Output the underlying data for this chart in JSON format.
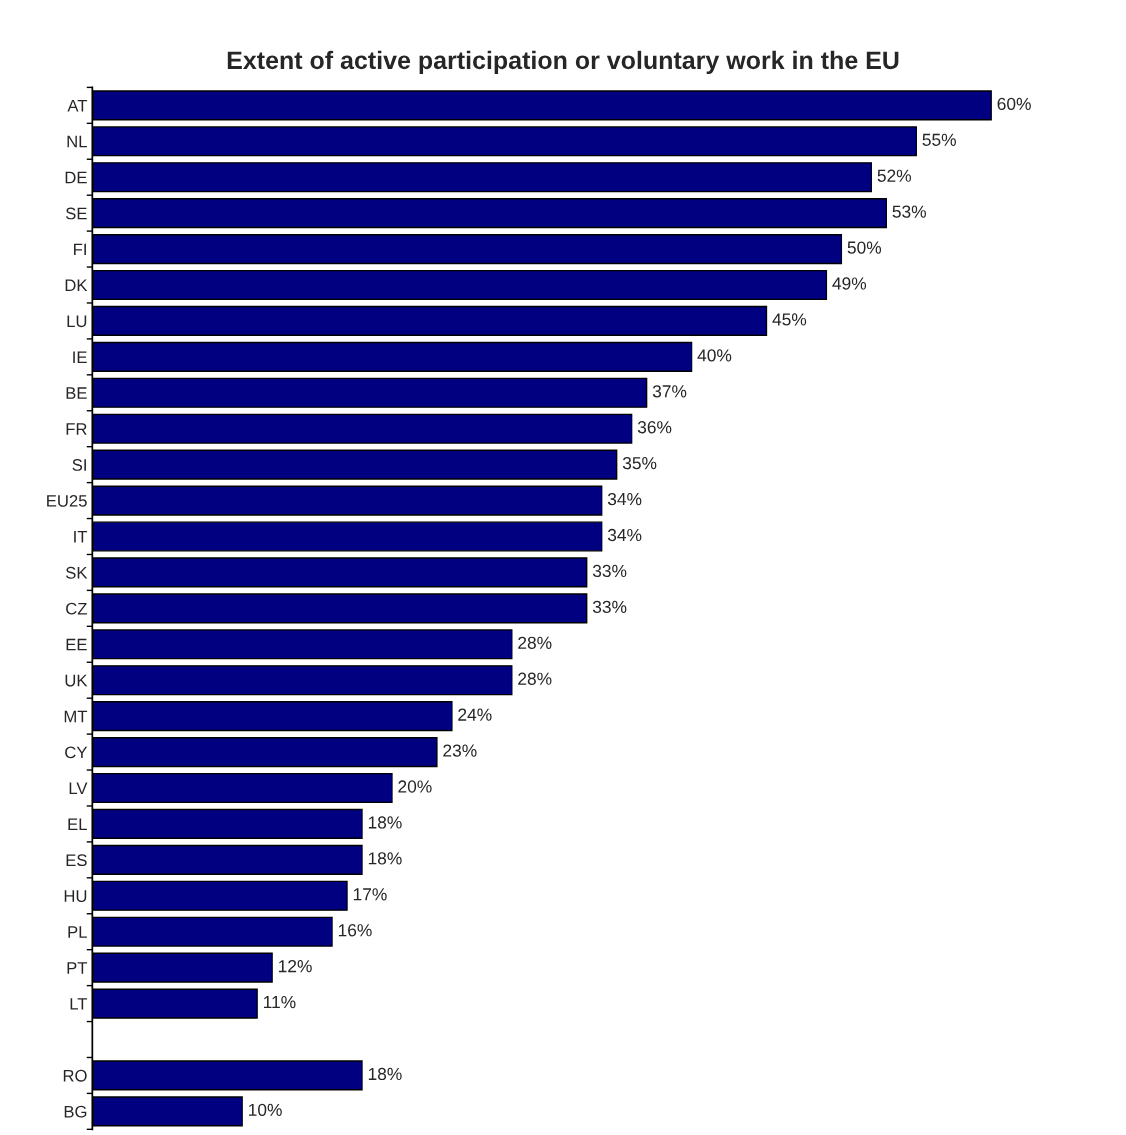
{
  "chart_data": {
    "type": "bar",
    "orientation": "horizontal",
    "title": "Extent of active participation or voluntary work in the EU",
    "categories": [
      "AT",
      "NL",
      "DE",
      "SE",
      "FI",
      "DK",
      "LU",
      "IE",
      "BE",
      "FR",
      "SI",
      "EU25",
      "IT",
      "SK",
      "CZ",
      "EE",
      "UK",
      "MT",
      "CY",
      "LV",
      "EL",
      "ES",
      "HU",
      "PL",
      "PT",
      "LT",
      null,
      "RO",
      "BG"
    ],
    "values": [
      60,
      55,
      52,
      53,
      50,
      49,
      45,
      40,
      37,
      36,
      35,
      34,
      34,
      33,
      33,
      28,
      28,
      24,
      23,
      20,
      18,
      18,
      17,
      16,
      12,
      11,
      null,
      18,
      10
    ],
    "value_labels": [
      "60%",
      "55%",
      "52%",
      "53%",
      "50%",
      "49%",
      "45%",
      "40%",
      "37%",
      "36%",
      "35%",
      "34%",
      "34%",
      "33%",
      "33%",
      "28%",
      "28%",
      "24%",
      "23%",
      "20%",
      "18%",
      "18%",
      "17%",
      "16%",
      "12%",
      "11%",
      null,
      "18%",
      "10%"
    ],
    "color": "#000080",
    "tick_labels": "y",
    "grid": false,
    "legend": false
  }
}
